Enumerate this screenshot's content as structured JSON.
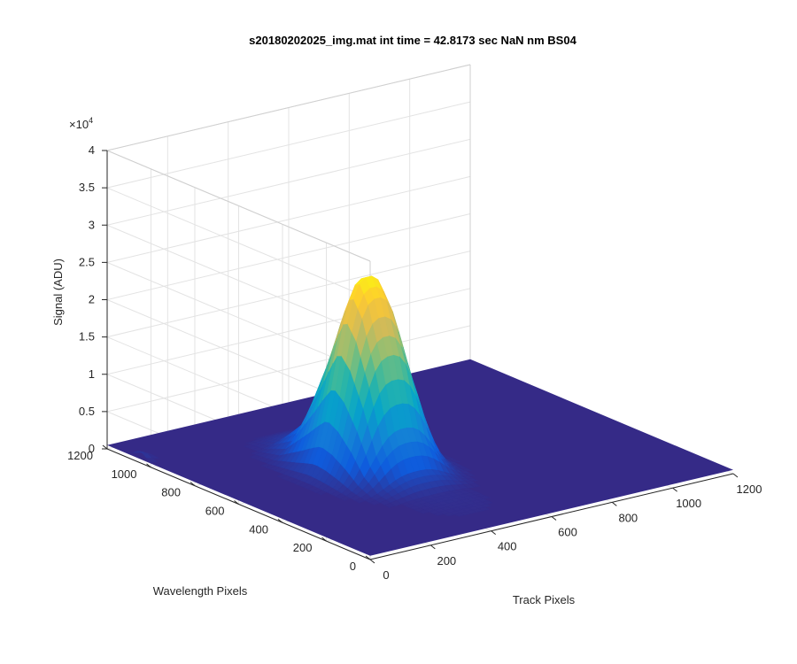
{
  "chart_data": {
    "type": "surface",
    "title": "s20180202025_img.mat int time = 42.8173 sec  NaN nm BS04",
    "xlabel": "Track Pixels",
    "ylabel": "Wavelength Pixels",
    "zlabel": "Signal (ADU)",
    "z_multiplier": "×10",
    "z_multiplier_exp": "4",
    "xlim": [
      0,
      1200
    ],
    "ylim": [
      0,
      1200
    ],
    "zlim": [
      0,
      40000
    ],
    "x_ticks": [
      "0",
      "200",
      "400",
      "600",
      "800",
      "1000",
      "1200"
    ],
    "y_ticks": [
      "0",
      "200",
      "400",
      "600",
      "800",
      "1000",
      "1200"
    ],
    "z_ticks": [
      "0",
      "0.5",
      "1",
      "1.5",
      "2",
      "2.5",
      "3",
      "3.5",
      "4"
    ],
    "grid": true,
    "colormap": [
      "#352a87",
      "#0f5cdd",
      "#1481d6",
      "#06a4ca",
      "#2eb7a4",
      "#87bf77",
      "#d1bb59",
      "#fec832",
      "#f9fb0e"
    ],
    "floor_color": "#352a87",
    "baseline": 500,
    "peak": {
      "track_center": 430,
      "wavelength_center": 610,
      "max_signal": 27000,
      "profile": [
        {
          "wavelength": 1200,
          "signal": 500
        },
        {
          "wavelength": 1000,
          "signal": 600
        },
        {
          "wavelength": 900,
          "signal": 1800
        },
        {
          "wavelength": 800,
          "signal": 6000
        },
        {
          "wavelength": 700,
          "signal": 17000
        },
        {
          "wavelength": 650,
          "signal": 23000
        },
        {
          "wavelength": 610,
          "signal": 27000
        },
        {
          "wavelength": 560,
          "signal": 24000
        },
        {
          "wavelength": 500,
          "signal": 17000
        },
        {
          "wavelength": 440,
          "signal": 8000
        },
        {
          "wavelength": 380,
          "signal": 3000
        },
        {
          "wavelength": 300,
          "signal": 900
        },
        {
          "wavelength": 0,
          "signal": 500
        }
      ],
      "track_width": 120
    },
    "secondary_bump": {
      "track": 0,
      "wavelength": 1050,
      "signal": 1500
    }
  }
}
